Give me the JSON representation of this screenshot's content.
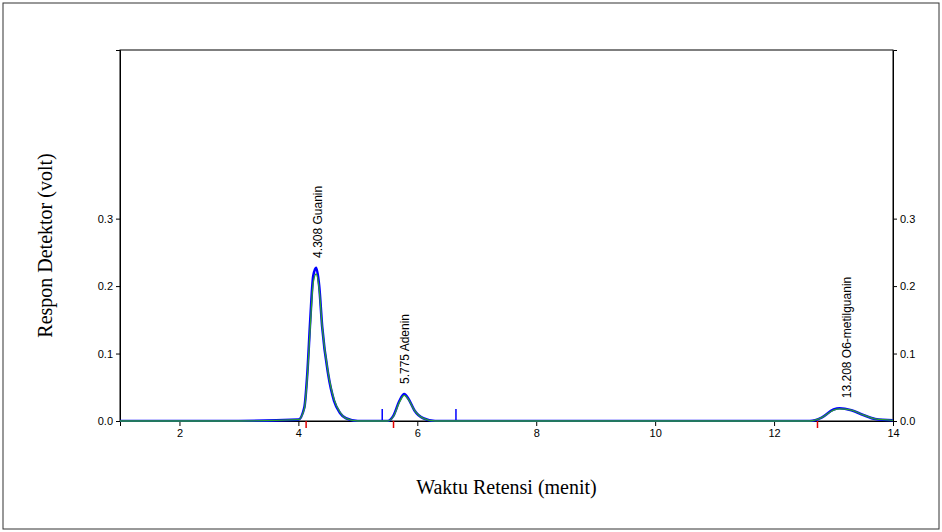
{
  "chart_data": {
    "type": "line",
    "x_label": "Waktu Retensi (menit)",
    "y_label": "Respon Detektor (volt)",
    "x": [
      1,
      2,
      3,
      4,
      4.1,
      4.15,
      4.2,
      4.25,
      4.3,
      4.35,
      4.4,
      4.5,
      4.6,
      4.7,
      4.8,
      5,
      5.5,
      5.6,
      5.7,
      5.78,
      5.85,
      5.95,
      6.1,
      6.3,
      7,
      9,
      11,
      12.6,
      12.8,
      13.0,
      13.1,
      13.3,
      13.5,
      13.7,
      14
    ],
    "series": [
      {
        "color": "#0000ff",
        "line_style": "solid",
        "values": [
          0,
          0,
          0,
          0.002,
          0.02,
          0.07,
          0.15,
          0.215,
          0.227,
          0.2,
          0.14,
          0.07,
          0.03,
          0.012,
          0.004,
          0,
          0,
          0.008,
          0.03,
          0.04,
          0.033,
          0.016,
          0.004,
          0,
          0,
          0,
          0,
          0,
          0.005,
          0.017,
          0.019,
          0.016,
          0.009,
          0.003,
          0.001
        ]
      },
      {
        "color": "#2e9e2e",
        "line_style": "solid",
        "values": [
          0,
          0,
          0,
          0.002,
          0.018,
          0.065,
          0.14,
          0.205,
          0.218,
          0.195,
          0.14,
          0.072,
          0.032,
          0.013,
          0.004,
          0,
          0,
          0.007,
          0.028,
          0.038,
          0.032,
          0.016,
          0.004,
          0,
          0,
          0,
          0,
          0,
          0.005,
          0.016,
          0.018,
          0.016,
          0.009,
          0.003,
          0.001
        ]
      }
    ],
    "xlim": [
      1,
      14
    ],
    "xticks": [
      2,
      4,
      6,
      8,
      10,
      12,
      14
    ],
    "ylim": [
      0,
      0.55
    ],
    "yticks": [
      {
        "value": 0,
        "label": "0.0"
      },
      0.1,
      0.2,
      0.3
    ],
    "y2lim": [
      0,
      0.55
    ],
    "y2ticks": [
      {
        "value": 0,
        "label": "0.0"
      },
      0.1,
      0.2,
      0.3
    ],
    "grid": false,
    "annotations": [
      {
        "x": 4.308,
        "y": 0.227,
        "text": "4.308 Guanin"
      },
      {
        "x": 5.775,
        "y": 0.04,
        "text": "5.775 Adenin"
      },
      {
        "x": 13.208,
        "y": 0.019,
        "text": "13.208 O6-metilguanin"
      }
    ],
    "peak_marks": [
      4.13,
      5.6,
      12.73
    ],
    "baseline_marks": [
      5.41,
      6.65
    ]
  }
}
